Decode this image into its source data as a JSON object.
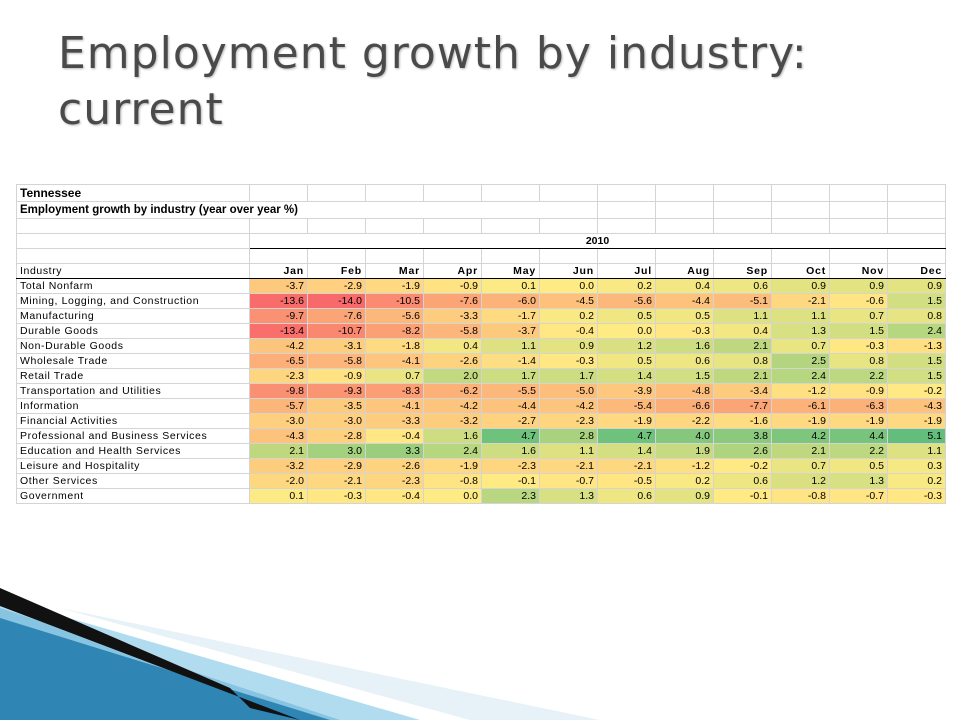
{
  "slide": {
    "title": "Employment growth by industry: current"
  },
  "sheet": {
    "state": "Tennessee",
    "subtitle": "Employment growth by industry (year over year %)",
    "year": "2010",
    "industry_header": "Industry",
    "months": [
      "Jan",
      "Feb",
      "Mar",
      "Apr",
      "May",
      "Jun",
      "Jul",
      "Aug",
      "Sep",
      "Oct",
      "Nov",
      "Dec"
    ],
    "rows": [
      {
        "label": "Total Nonfarm",
        "values": [
          "-3.7",
          "-2.9",
          "-1.9",
          "-0.9",
          "0.1",
          "0.0",
          "0.2",
          "0.4",
          "0.6",
          "0.9",
          "0.9",
          "0.9"
        ]
      },
      {
        "label": "Mining, Logging, and Construction",
        "values": [
          "-13.6",
          "-14.0",
          "-10.5",
          "-7.6",
          "-6.0",
          "-4.5",
          "-5.6",
          "-4.4",
          "-5.1",
          "-2.1",
          "-0.6",
          "1.5"
        ]
      },
      {
        "label": "Manufacturing",
        "values": [
          "-9.7",
          "-7.6",
          "-5.6",
          "-3.3",
          "-1.7",
          "0.2",
          "0.5",
          "0.5",
          "1.1",
          "1.1",
          "0.7",
          "0.8"
        ]
      },
      {
        "label": "Durable Goods",
        "values": [
          "-13.4",
          "-10.7",
          "-8.2",
          "-5.8",
          "-3.7",
          "-0.4",
          "0.0",
          "-0.3",
          "0.4",
          "1.3",
          "1.5",
          "2.4"
        ]
      },
      {
        "label": "Non-Durable Goods",
        "values": [
          "-4.2",
          "-3.1",
          "-1.8",
          "0.4",
          "1.1",
          "0.9",
          "1.2",
          "1.6",
          "2.1",
          "0.7",
          "-0.3",
          "-1.3"
        ]
      },
      {
        "label": "Wholesale Trade",
        "values": [
          "-6.5",
          "-5.8",
          "-4.1",
          "-2.6",
          "-1.4",
          "-0.3",
          "0.5",
          "0.6",
          "0.8",
          "2.5",
          "0.8",
          "1.5"
        ]
      },
      {
        "label": "Retail Trade",
        "values": [
          "-2.3",
          "-0.9",
          "0.7",
          "2.0",
          "1.7",
          "1.7",
          "1.4",
          "1.5",
          "2.1",
          "2.4",
          "2.2",
          "1.5"
        ]
      },
      {
        "label": "Transportation and Utilities",
        "values": [
          "-9.8",
          "-9.3",
          "-8.3",
          "-6.2",
          "-5.5",
          "-5.0",
          "-3.9",
          "-4.8",
          "-3.4",
          "-1.2",
          "-0.9",
          "-0.2"
        ]
      },
      {
        "label": "Information",
        "values": [
          "-5.7",
          "-3.5",
          "-4.1",
          "-4.2",
          "-4.4",
          "-4.2",
          "-5.4",
          "-6.6",
          "-7.7",
          "-6.1",
          "-6.3",
          "-4.3"
        ]
      },
      {
        "label": "Financial Activities",
        "values": [
          "-3.0",
          "-3.0",
          "-3.3",
          "-3.2",
          "-2.7",
          "-2.3",
          "-1.9",
          "-2.2",
          "-1.6",
          "-1.9",
          "-1.9",
          "-1.9"
        ]
      },
      {
        "label": "Professional and Business Services",
        "values": [
          "-4.3",
          "-2.8",
          "-0.4",
          "1.6",
          "4.7",
          "2.8",
          "4.7",
          "4.0",
          "3.8",
          "4.2",
          "4.4",
          "5.1"
        ]
      },
      {
        "label": "Education and Health Services",
        "values": [
          "2.1",
          "3.0",
          "3.3",
          "2.4",
          "1.6",
          "1.1",
          "1.4",
          "1.9",
          "2.6",
          "2.1",
          "2.2",
          "1.1"
        ]
      },
      {
        "label": "Leisure and Hospitality",
        "values": [
          "-3.2",
          "-2.9",
          "-2.6",
          "-1.9",
          "-2.3",
          "-2.1",
          "-2.1",
          "-1.2",
          "-0.2",
          "0.7",
          "0.5",
          "0.3"
        ]
      },
      {
        "label": "Other Services",
        "values": [
          "-2.0",
          "-2.1",
          "-2.3",
          "-0.8",
          "-0.1",
          "-0.7",
          "-0.5",
          "0.2",
          "0.6",
          "1.2",
          "1.3",
          "0.2"
        ]
      },
      {
        "label": "Government",
        "values": [
          "0.1",
          "-0.3",
          "-0.4",
          "0.0",
          "2.3",
          "1.3",
          "0.6",
          "0.9",
          "-0.1",
          "-0.8",
          "-0.7",
          "-0.3"
        ]
      }
    ]
  },
  "colors": {
    "neg_max": "#f8696b",
    "mid": "#ffeb84",
    "pos_max": "#63be7b",
    "title_text": "#4a4a4a",
    "ribbon_dark": "#111111",
    "ribbon_blue": "#2f86b5"
  }
}
